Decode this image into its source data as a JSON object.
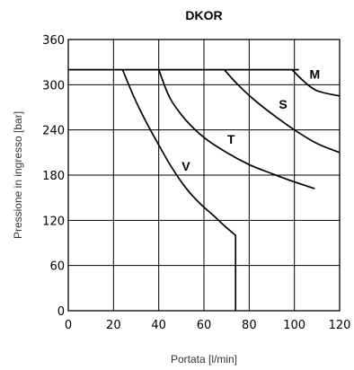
{
  "chart_data": {
    "type": "line",
    "title": "DKOR",
    "xlabel": "Portata [l/min]",
    "ylabel": "Pressione in ingresso [bar]",
    "xlim": [
      0,
      120
    ],
    "ylim": [
      0,
      360
    ],
    "x_ticks": [
      "0",
      "20",
      "40",
      "60",
      "80",
      "100",
      "120"
    ],
    "y_ticks": [
      "0",
      "60",
      "120",
      "180",
      "240",
      "300",
      "360"
    ],
    "grid": true,
    "series": [
      {
        "name": "V",
        "label_at": [
          52,
          186
        ],
        "points": [
          [
            24,
            320
          ],
          [
            29,
            284
          ],
          [
            34,
            253
          ],
          [
            40,
            220
          ],
          [
            46,
            189
          ],
          [
            52,
            163
          ],
          [
            58,
            143
          ],
          [
            64,
            127
          ],
          [
            69,
            113
          ],
          [
            74,
            100
          ],
          [
            74,
            0
          ]
        ]
      },
      {
        "name": "T",
        "label_at": [
          72,
          222
        ],
        "points": [
          [
            40,
            320
          ],
          [
            45,
            282
          ],
          [
            52,
            253
          ],
          [
            60,
            230
          ],
          [
            70,
            210
          ],
          [
            80,
            194
          ],
          [
            90,
            182
          ],
          [
            100,
            171
          ],
          [
            109,
            162
          ]
        ]
      },
      {
        "name": "S",
        "label_at": [
          95,
          268
        ],
        "points": [
          [
            69,
            320
          ],
          [
            75,
            300
          ],
          [
            83,
            278
          ],
          [
            92,
            257
          ],
          [
            100,
            240
          ],
          [
            110,
            222
          ],
          [
            120,
            210
          ]
        ]
      },
      {
        "name": "M",
        "label_at": [
          109,
          308
        ],
        "points": [
          [
            99,
            320
          ],
          [
            104,
            305
          ],
          [
            110,
            292
          ],
          [
            120,
            285
          ]
        ]
      }
    ],
    "limit_line": [
      [
        0,
        320
      ],
      [
        102,
        320
      ]
    ]
  }
}
